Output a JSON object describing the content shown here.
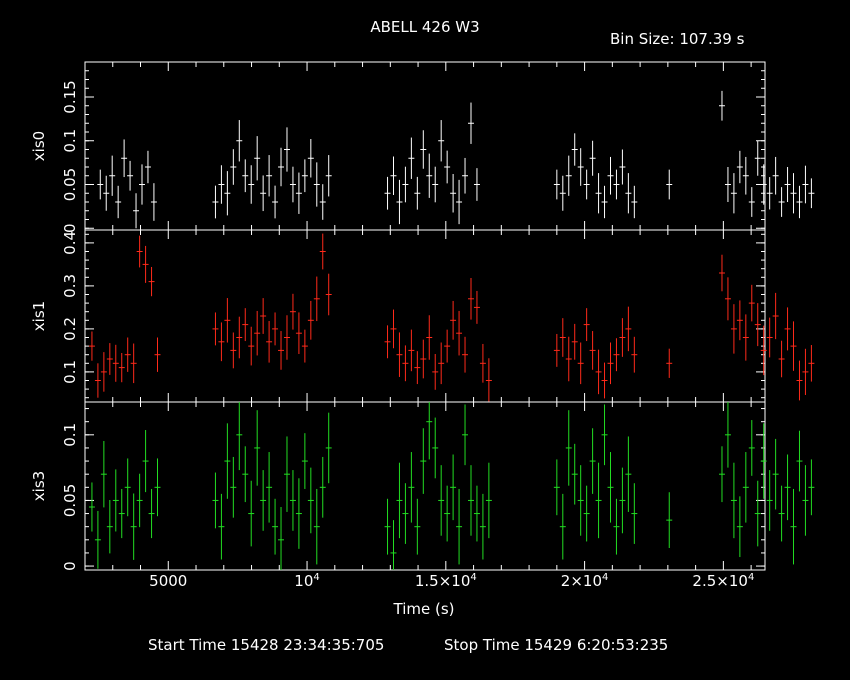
{
  "header": {
    "title": "ABELL 426 W3",
    "bin_size": "Bin Size: 107.39 s"
  },
  "footer": {
    "start": "Start Time 15428 23:34:35:705",
    "stop": "Stop Time 15429  6:20:53:235"
  },
  "chart_data": {
    "type": "scatter",
    "title": "ABELL 426 W3",
    "xlabel": "Time (s)",
    "xlim": [
      2000,
      26500
    ],
    "x_ticks": [
      {
        "value": 5000,
        "label": "5000"
      },
      {
        "value": 10000,
        "label": "10",
        "sup": "4"
      },
      {
        "value": 15000,
        "label": "1.5×10",
        "sup": "4"
      },
      {
        "value": 20000,
        "label": "2×10",
        "sup": "4"
      },
      {
        "value": 25000,
        "label": "2.5×10",
        "sup": "4"
      }
    ],
    "panels": [
      {
        "name": "xis0",
        "ylabel": "xis0",
        "color": "#ffffff",
        "ylim": [
          -0.002,
          0.19
        ],
        "yticks": [
          0,
          0.05,
          0.1,
          0.15
        ],
        "ytick_labels": [
          "0",
          "0.05",
          "0.1",
          "0.15"
        ],
        "segments": [
          {
            "x0": 2550,
            "n": 10,
            "y": [
              0.05,
              0.04,
              0.06,
              0.03,
              0.08,
              0.06,
              0.02,
              0.05,
              0.07,
              0.03
            ],
            "err": 0.02
          },
          {
            "x0": 6700,
            "n": 20,
            "y": [
              0.03,
              0.05,
              0.04,
              0.07,
              0.1,
              0.06,
              0.05,
              0.08,
              0.04,
              0.06,
              0.03,
              0.07,
              0.09,
              0.05,
              0.04,
              0.06,
              0.08,
              0.05,
              0.03,
              0.06
            ],
            "err": 0.022
          },
          {
            "x0": 12900,
            "n": 16,
            "y": [
              0.04,
              0.06,
              0.03,
              0.05,
              0.08,
              0.04,
              0.09,
              0.06,
              0.05,
              0.1,
              0.07,
              0.04,
              0.03,
              0.06,
              0.12,
              0.05
            ],
            "err": 0.022
          },
          {
            "x0": 19000,
            "n": 14,
            "y": [
              0.05,
              0.04,
              0.06,
              0.09,
              0.07,
              0.05,
              0.08,
              0.04,
              0.03,
              0.06,
              0.05,
              0.07,
              0.04,
              0.03
            ],
            "err": 0.02
          },
          {
            "x0": 23050,
            "n": 1,
            "y": [
              0.05
            ],
            "err": 0.02
          },
          {
            "x0": 24950,
            "n": 16,
            "y": [
              0.14,
              0.05,
              0.04,
              0.07,
              0.06,
              0.03,
              0.08,
              0.05,
              0.04,
              0.06,
              0.03,
              0.05,
              0.04,
              0.03,
              0.05,
              0.04
            ],
            "err": 0.02
          }
        ]
      },
      {
        "name": "xis1",
        "ylabel": "xis1",
        "color": "#ff2a1a",
        "ylim": [
          0.03,
          0.43
        ],
        "yticks": [
          0.1,
          0.2,
          0.3,
          0.4
        ],
        "ytick_labels": [
          "0.1",
          "0.2",
          "0.3",
          "0.4"
        ],
        "segments": [
          {
            "x0": 2250,
            "n": 12,
            "y": [
              0.16,
              0.08,
              0.1,
              0.13,
              0.12,
              0.11,
              0.14,
              0.12,
              0.38,
              0.35,
              0.31,
              0.14
            ],
            "err": 0.04
          },
          {
            "x0": 6700,
            "n": 20,
            "y": [
              0.2,
              0.17,
              0.22,
              0.15,
              0.18,
              0.21,
              0.16,
              0.19,
              0.23,
              0.17,
              0.2,
              0.15,
              0.18,
              0.24,
              0.19,
              0.16,
              0.22,
              0.27,
              0.38,
              0.28
            ],
            "err": 0.045
          },
          {
            "x0": 12900,
            "n": 18,
            "y": [
              0.17,
              0.2,
              0.14,
              0.12,
              0.15,
              0.11,
              0.13,
              0.18,
              0.1,
              0.12,
              0.16,
              0.22,
              0.19,
              0.14,
              0.27,
              0.25,
              0.12,
              0.08
            ],
            "err": 0.045
          },
          {
            "x0": 19000,
            "n": 14,
            "y": [
              0.15,
              0.18,
              0.13,
              0.17,
              0.12,
              0.21,
              0.15,
              0.1,
              0.08,
              0.12,
              0.14,
              0.18,
              0.2,
              0.14
            ],
            "err": 0.045
          },
          {
            "x0": 23050,
            "n": 1,
            "y": [
              0.12
            ],
            "err": 0.04
          },
          {
            "x0": 24950,
            "n": 16,
            "y": [
              0.33,
              0.27,
              0.2,
              0.22,
              0.18,
              0.26,
              0.21,
              0.15,
              0.18,
              0.23,
              0.13,
              0.2,
              0.16,
              0.08,
              0.1,
              0.12
            ],
            "err": 0.05
          }
        ]
      },
      {
        "name": "xis3",
        "ylabel": "xis3",
        "color": "#22dd22",
        "ylim": [
          -0.003,
          0.125
        ],
        "yticks": [
          0,
          0.05,
          0.1
        ],
        "ytick_labels": [
          "0",
          "0.05",
          "0.1"
        ],
        "segments": [
          {
            "x0": 2250,
            "n": 12,
            "y": [
              0.045,
              0.02,
              0.07,
              0.03,
              0.05,
              0.04,
              0.06,
              0.03,
              0.05,
              0.08,
              0.04,
              0.06
            ],
            "err": 0.022
          },
          {
            "x0": 6700,
            "n": 20,
            "y": [
              0.05,
              0.03,
              0.08,
              0.06,
              0.1,
              0.07,
              0.04,
              0.09,
              0.05,
              0.06,
              0.03,
              0.02,
              0.07,
              0.05,
              0.04,
              0.08,
              0.05,
              0.03,
              0.06,
              0.09
            ],
            "err": 0.025
          },
          {
            "x0": 12900,
            "n": 18,
            "y": [
              0.03,
              0.01,
              0.05,
              0.04,
              0.06,
              0.03,
              0.08,
              0.11,
              0.09,
              0.05,
              0.04,
              0.06,
              0.03,
              0.1,
              0.05,
              0.04,
              0.03,
              0.05
            ],
            "err": 0.025
          },
          {
            "x0": 19000,
            "n": 14,
            "y": [
              0.06,
              0.03,
              0.09,
              0.07,
              0.05,
              0.04,
              0.08,
              0.05,
              0.1,
              0.06,
              0.03,
              0.05,
              0.07,
              0.04
            ],
            "err": 0.025
          },
          {
            "x0": 23050,
            "n": 1,
            "y": [
              0.035
            ],
            "err": 0.025
          },
          {
            "x0": 24950,
            "n": 16,
            "y": [
              0.07,
              0.1,
              0.05,
              0.03,
              0.06,
              0.09,
              0.04,
              0.08,
              0.05,
              0.07,
              0.04,
              0.06,
              0.03,
              0.08,
              0.05,
              0.06
            ],
            "err": 0.025
          }
        ]
      }
    ]
  }
}
